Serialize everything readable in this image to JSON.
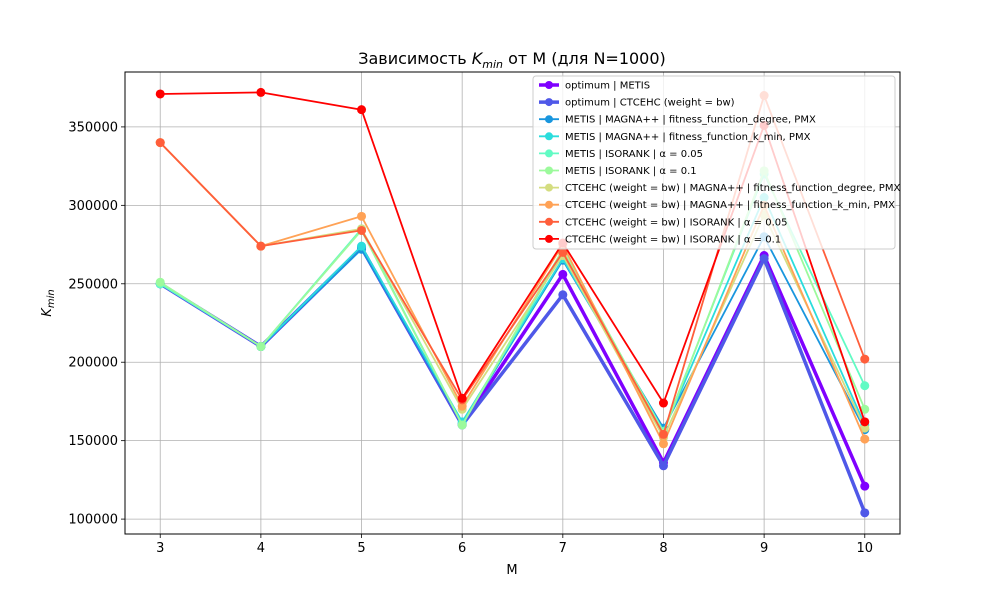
{
  "chart_data": {
    "type": "line",
    "title": {
      "prefix": "Зависимость ",
      "symbol": "K",
      "subscript": "min",
      "suffix": " от M (для N=1000)"
    },
    "xlabel": "M",
    "ylabel": {
      "symbol": "K",
      "subscript": "min"
    },
    "x": [
      3,
      4,
      5,
      6,
      7,
      8,
      9,
      10
    ],
    "xlim": [
      2.65,
      10.35
    ],
    "ylim": [
      90500,
      385000
    ],
    "yticks": [
      100000,
      150000,
      200000,
      250000,
      300000,
      350000
    ],
    "ytick_labels": [
      "100000",
      "150000",
      "200000",
      "250000",
      "300000",
      "350000"
    ],
    "xtick_labels": [
      "3",
      "4",
      "5",
      "6",
      "7",
      "8",
      "9",
      "10"
    ],
    "grid": true,
    "legend_position": "upper right",
    "series": [
      {
        "name": "optimum | METIS",
        "color": "#7f00ff",
        "width": 3.5,
        "values": [
          250000,
          210000,
          273000,
          160000,
          256000,
          136000,
          268000,
          121000
        ]
      },
      {
        "name": "optimum | СТСЕНС (weight = bw)",
        "color": "#4f58e8",
        "width": 3.5,
        "values": [
          250000,
          210000,
          273000,
          160000,
          243000,
          134000,
          266000,
          104000
        ]
      },
      {
        "name": "METIS | MAGNA++ | fitness_function_degree, PMX",
        "color": "#1996de",
        "width": 1.8,
        "values": [
          250000,
          210000,
          272000,
          161000,
          265000,
          158000,
          280000,
          157000
        ]
      },
      {
        "name": "METIS | MAGNA++ | fitness_function_k_min, PMX",
        "color": "#2adddd",
        "width": 1.8,
        "values": [
          250000,
          210000,
          274000,
          162000,
          266000,
          156000,
          305000,
          160000
        ]
      },
      {
        "name": "METIS | ISORANK | α = 0.05",
        "color": "#62fbc4",
        "width": 1.8,
        "values": [
          250000,
          210000,
          285000,
          160000,
          270000,
          156000,
          320000,
          185000
        ]
      },
      {
        "name": "METIS | ISORANK | α = 0.1",
        "color": "#9cfa9c",
        "width": 1.8,
        "values": [
          251000,
          210000,
          284000,
          160000,
          272000,
          155000,
          322000,
          170000
        ]
      },
      {
        "name": "СТСЕНС (weight = bw) | MAGNA++ | fitness_function_degree, PMX",
        "color": "#d4dd80",
        "width": 1.8,
        "values": [
          340000,
          274000,
          285000,
          170000,
          268000,
          152000,
          294000,
          158000
        ]
      },
      {
        "name": "СТСЕНС (weight = bw) | MAGNA++ | fitness_function_k_min, PMX",
        "color": "#ffa256",
        "width": 1.8,
        "values": [
          340000,
          274000,
          293000,
          172000,
          275000,
          148000,
          300000,
          151000
        ]
      },
      {
        "name": "СТСЕНС (weight = bw) | ISORANK | α = 0.05",
        "color": "#ff5e3b",
        "width": 1.8,
        "values": [
          340000,
          274000,
          284000,
          176000,
          270000,
          154000,
          370000,
          202000
        ]
      },
      {
        "name": "СТСЕНС (weight = bw) | ISORANK | α = 0.1",
        "color": "#ff0000",
        "width": 1.8,
        "values": [
          371000,
          372000,
          361000,
          177000,
          276000,
          174000,
          351000,
          162000
        ]
      }
    ]
  }
}
